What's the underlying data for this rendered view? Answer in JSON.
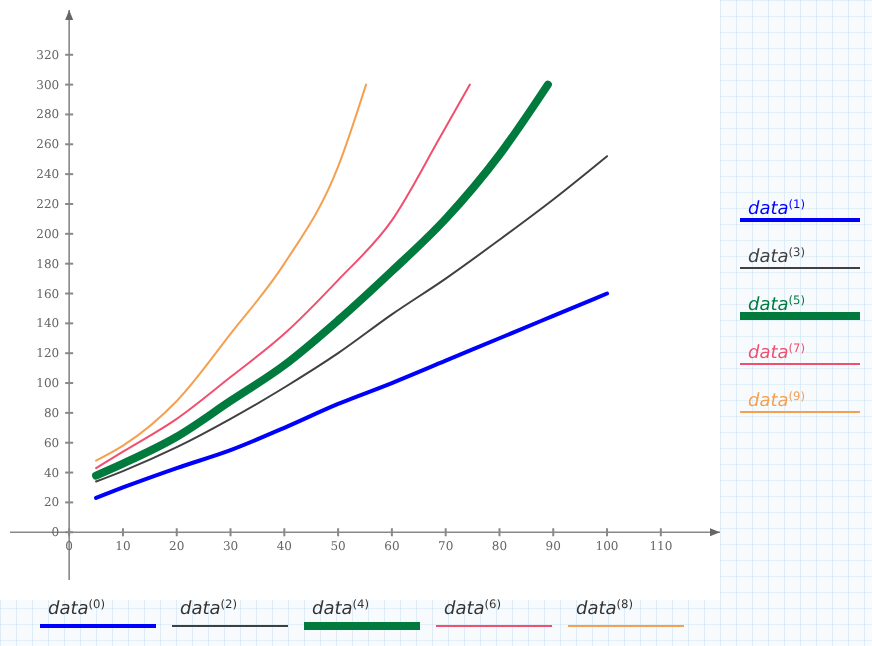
{
  "chart_data": {
    "type": "line",
    "xlim": [
      -11,
      121
    ],
    "ylim": [
      -32,
      350
    ],
    "xticks": [
      0,
      10,
      20,
      30,
      40,
      50,
      60,
      70,
      80,
      90,
      100,
      110
    ],
    "yticks": [
      0,
      20,
      40,
      60,
      80,
      100,
      120,
      140,
      160,
      180,
      200,
      220,
      240,
      260,
      280,
      300,
      320
    ],
    "grid": false,
    "legend": "right",
    "line_style": "solid",
    "annotations": [
      "data$^{(0)}$",
      "data$^{(2)}$",
      "data$^{(4)}$",
      "data$^{(6)}$",
      "data$^{(8)}$"
    ],
    "series": [
      {
        "name": "data$^{(1)}$",
        "color": "#0000ff",
        "x": [
          5,
          10,
          20,
          30,
          40,
          50,
          60,
          70,
          80,
          90,
          100
        ],
        "values": [
          23,
          30,
          43,
          55,
          70,
          86,
          100,
          115,
          130,
          145,
          160
        ]
      },
      {
        "name": "data$^{(3)}$",
        "color": "#404040",
        "x": [
          5,
          10,
          20,
          30,
          40,
          50,
          60,
          70,
          80,
          90,
          100
        ],
        "values": [
          34,
          41,
          57,
          76,
          97,
          120,
          146,
          170,
          196,
          223,
          252
        ]
      },
      {
        "name": "data$^{(5)}$",
        "color": "#007a3d",
        "x": [
          5,
          10,
          20,
          30,
          40,
          50,
          60,
          70,
          80,
          89
        ],
        "values": [
          38,
          46,
          64,
          88,
          112,
          142,
          175,
          210,
          253,
          300
        ]
      },
      {
        "name": "data$^{(7)}$",
        "color": "#f0506e",
        "x": [
          5,
          10,
          20,
          30,
          40,
          50,
          60,
          69,
          74.5
        ],
        "values": [
          43,
          54,
          76,
          104,
          133,
          169,
          209,
          265,
          300
        ]
      },
      {
        "name": "data$^{(9)}$",
        "color": "#f5a050",
        "x": [
          5,
          10,
          20,
          30,
          40,
          50,
          55.2
        ],
        "values": [
          48,
          58,
          88,
          133,
          180,
          245,
          300
        ]
      }
    ]
  }
}
